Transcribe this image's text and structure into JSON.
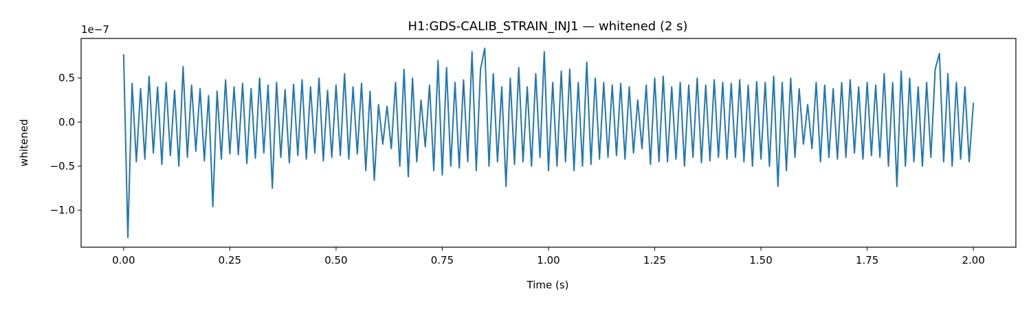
{
  "chart_data": {
    "type": "line",
    "title": "H1:GDS-CALIB_STRAIN_INJ1 — whitened (2 s)",
    "xlabel": "Time (s)",
    "ylabel": "whitened",
    "y_offset_label": "1e−7",
    "color": "#1f77b4",
    "x": [
      0,
      0.01,
      0.02,
      0.03,
      0.04,
      0.05,
      0.06,
      0.07,
      0.08,
      0.09,
      0.1,
      0.11,
      0.12,
      0.13,
      0.14,
      0.15,
      0.16,
      0.17,
      0.18,
      0.19,
      0.2,
      0.21,
      0.22,
      0.23,
      0.24,
      0.25,
      0.26,
      0.27,
      0.28,
      0.29,
      0.3,
      0.31,
      0.32,
      0.33,
      0.34,
      0.35,
      0.36,
      0.37,
      0.38,
      0.39,
      0.4,
      0.41,
      0.42,
      0.43,
      0.44,
      0.45,
      0.46,
      0.47,
      0.48,
      0.49,
      0.5,
      0.51,
      0.52,
      0.53,
      0.54,
      0.55,
      0.56,
      0.57,
      0.58,
      0.59,
      0.6,
      0.61,
      0.62,
      0.63,
      0.64,
      0.65,
      0.66,
      0.67,
      0.68,
      0.69,
      0.7,
      0.71,
      0.72,
      0.73,
      0.74,
      0.75,
      0.76,
      0.77,
      0.78,
      0.79,
      0.8,
      0.81,
      0.82,
      0.83,
      0.84,
      0.85,
      0.86,
      0.87,
      0.88,
      0.89,
      0.9,
      0.91,
      0.92,
      0.93,
      0.94,
      0.95,
      0.96,
      0.97,
      0.98,
      0.99,
      1,
      1.01,
      1.02,
      1.03,
      1.04,
      1.05,
      1.06,
      1.07,
      1.08,
      1.09,
      1.1,
      1.11,
      1.12,
      1.13,
      1.14,
      1.15,
      1.16,
      1.17,
      1.18,
      1.19,
      1.2,
      1.21,
      1.22,
      1.23,
      1.24,
      1.25,
      1.26,
      1.27,
      1.28,
      1.29,
      1.3,
      1.31,
      1.32,
      1.33,
      1.34,
      1.35,
      1.36,
      1.37,
      1.38,
      1.39,
      1.4,
      1.41,
      1.42,
      1.43,
      1.44,
      1.45,
      1.46,
      1.47,
      1.48,
      1.49,
      1.5,
      1.51,
      1.52,
      1.53,
      1.54,
      1.55,
      1.56,
      1.57,
      1.58,
      1.59,
      1.6,
      1.61,
      1.62,
      1.63,
      1.64,
      1.65,
      1.66,
      1.67,
      1.68,
      1.69,
      1.7,
      1.71,
      1.72,
      1.73,
      1.74,
      1.75,
      1.76,
      1.77,
      1.78,
      1.79,
      1.8,
      1.81,
      1.82,
      1.83,
      1.84,
      1.85,
      1.86,
      1.87,
      1.88,
      1.89,
      1.9,
      1.91,
      1.92,
      1.93,
      1.94,
      1.95,
      1.96,
      1.97,
      1.98,
      1.99,
      2
    ],
    "values": [
      0.77,
      -1.31,
      0.44,
      -0.45,
      0.38,
      -0.42,
      0.52,
      -0.35,
      0.4,
      -0.48,
      0.45,
      -0.38,
      0.36,
      -0.5,
      0.63,
      -0.4,
      0.42,
      -0.33,
      0.38,
      -0.44,
      0.3,
      -0.96,
      0.35,
      -0.42,
      0.48,
      -0.36,
      0.4,
      -0.37,
      0.44,
      -0.47,
      0.38,
      -0.41,
      0.5,
      -0.35,
      0.42,
      -0.75,
      0.45,
      -0.4,
      0.37,
      -0.46,
      0.43,
      -0.38,
      0.48,
      -0.42,
      0.4,
      -0.35,
      0.5,
      -0.44,
      0.36,
      -0.4,
      0.42,
      -0.38,
      0.55,
      -0.42,
      0.4,
      -0.36,
      0.44,
      -0.55,
      0.35,
      -0.66,
      0.2,
      -0.25,
      0.18,
      -0.3,
      0.45,
      -0.5,
      0.6,
      -0.62,
      0.5,
      -0.45,
      0.25,
      -0.28,
      0.42,
      -0.55,
      0.7,
      -0.6,
      0.62,
      -0.5,
      0.45,
      -0.52,
      0.48,
      -0.45,
      0.8,
      -0.55,
      0.6,
      0.84,
      -0.5,
      0.55,
      -0.45,
      0.4,
      -0.73,
      0.5,
      -0.48,
      0.62,
      -0.45,
      0.4,
      -0.5,
      0.55,
      -0.4,
      0.8,
      -0.55,
      0.45,
      -0.5,
      0.58,
      -0.45,
      0.6,
      -0.55,
      0.45,
      -0.5,
      0.68,
      -0.48,
      0.5,
      -0.42,
      0.45,
      -0.4,
      0.42,
      -0.38,
      0.44,
      -0.42,
      0.4,
      -0.35,
      0.25,
      -0.3,
      0.42,
      -0.48,
      0.5,
      -0.45,
      0.52,
      -0.45,
      0.4,
      -0.42,
      0.45,
      -0.5,
      0.42,
      -0.4,
      0.5,
      -0.46,
      0.42,
      -0.44,
      0.48,
      -0.4,
      0.45,
      -0.42,
      0.44,
      -0.4,
      0.48,
      -0.45,
      0.42,
      -0.5,
      0.46,
      -0.42,
      0.45,
      -0.5,
      0.52,
      -0.73,
      0.45,
      -0.55,
      0.5,
      -0.4,
      0.38,
      -0.25,
      0.2,
      -0.3,
      0.45,
      -0.45,
      0.42,
      -0.4,
      0.38,
      -0.42,
      0.45,
      -0.4,
      0.48,
      -0.35,
      0.4,
      -0.42,
      0.45,
      -0.38,
      0.42,
      -0.4,
      0.55,
      -0.5,
      0.45,
      -0.73,
      0.58,
      -0.5,
      0.5,
      -0.45,
      0.4,
      -0.5,
      0.45,
      -0.4,
      0.6,
      0.78,
      -0.45,
      0.55,
      -0.5,
      0.45,
      -0.42,
      0.4,
      -0.45,
      0.22
    ],
    "xlim": [
      -0.1,
      2.1
    ],
    "ylim": [
      -1.42,
      0.95
    ],
    "xticks": [
      {
        "value": 0,
        "label": "0.00"
      },
      {
        "value": 0.25,
        "label": "0.25"
      },
      {
        "value": 0.5,
        "label": "0.50"
      },
      {
        "value": 0.75,
        "label": "0.75"
      },
      {
        "value": 1,
        "label": "1.00"
      },
      {
        "value": 1.25,
        "label": "1.25"
      },
      {
        "value": 1.5,
        "label": "1.50"
      },
      {
        "value": 1.75,
        "label": "1.75"
      },
      {
        "value": 2,
        "label": "2.00"
      }
    ],
    "yticks": [
      {
        "value": -1,
        "label": "−1.0"
      },
      {
        "value": -0.5,
        "label": "−0.5"
      },
      {
        "value": 0,
        "label": "0.0"
      },
      0.5
    ],
    "grid": false
  }
}
